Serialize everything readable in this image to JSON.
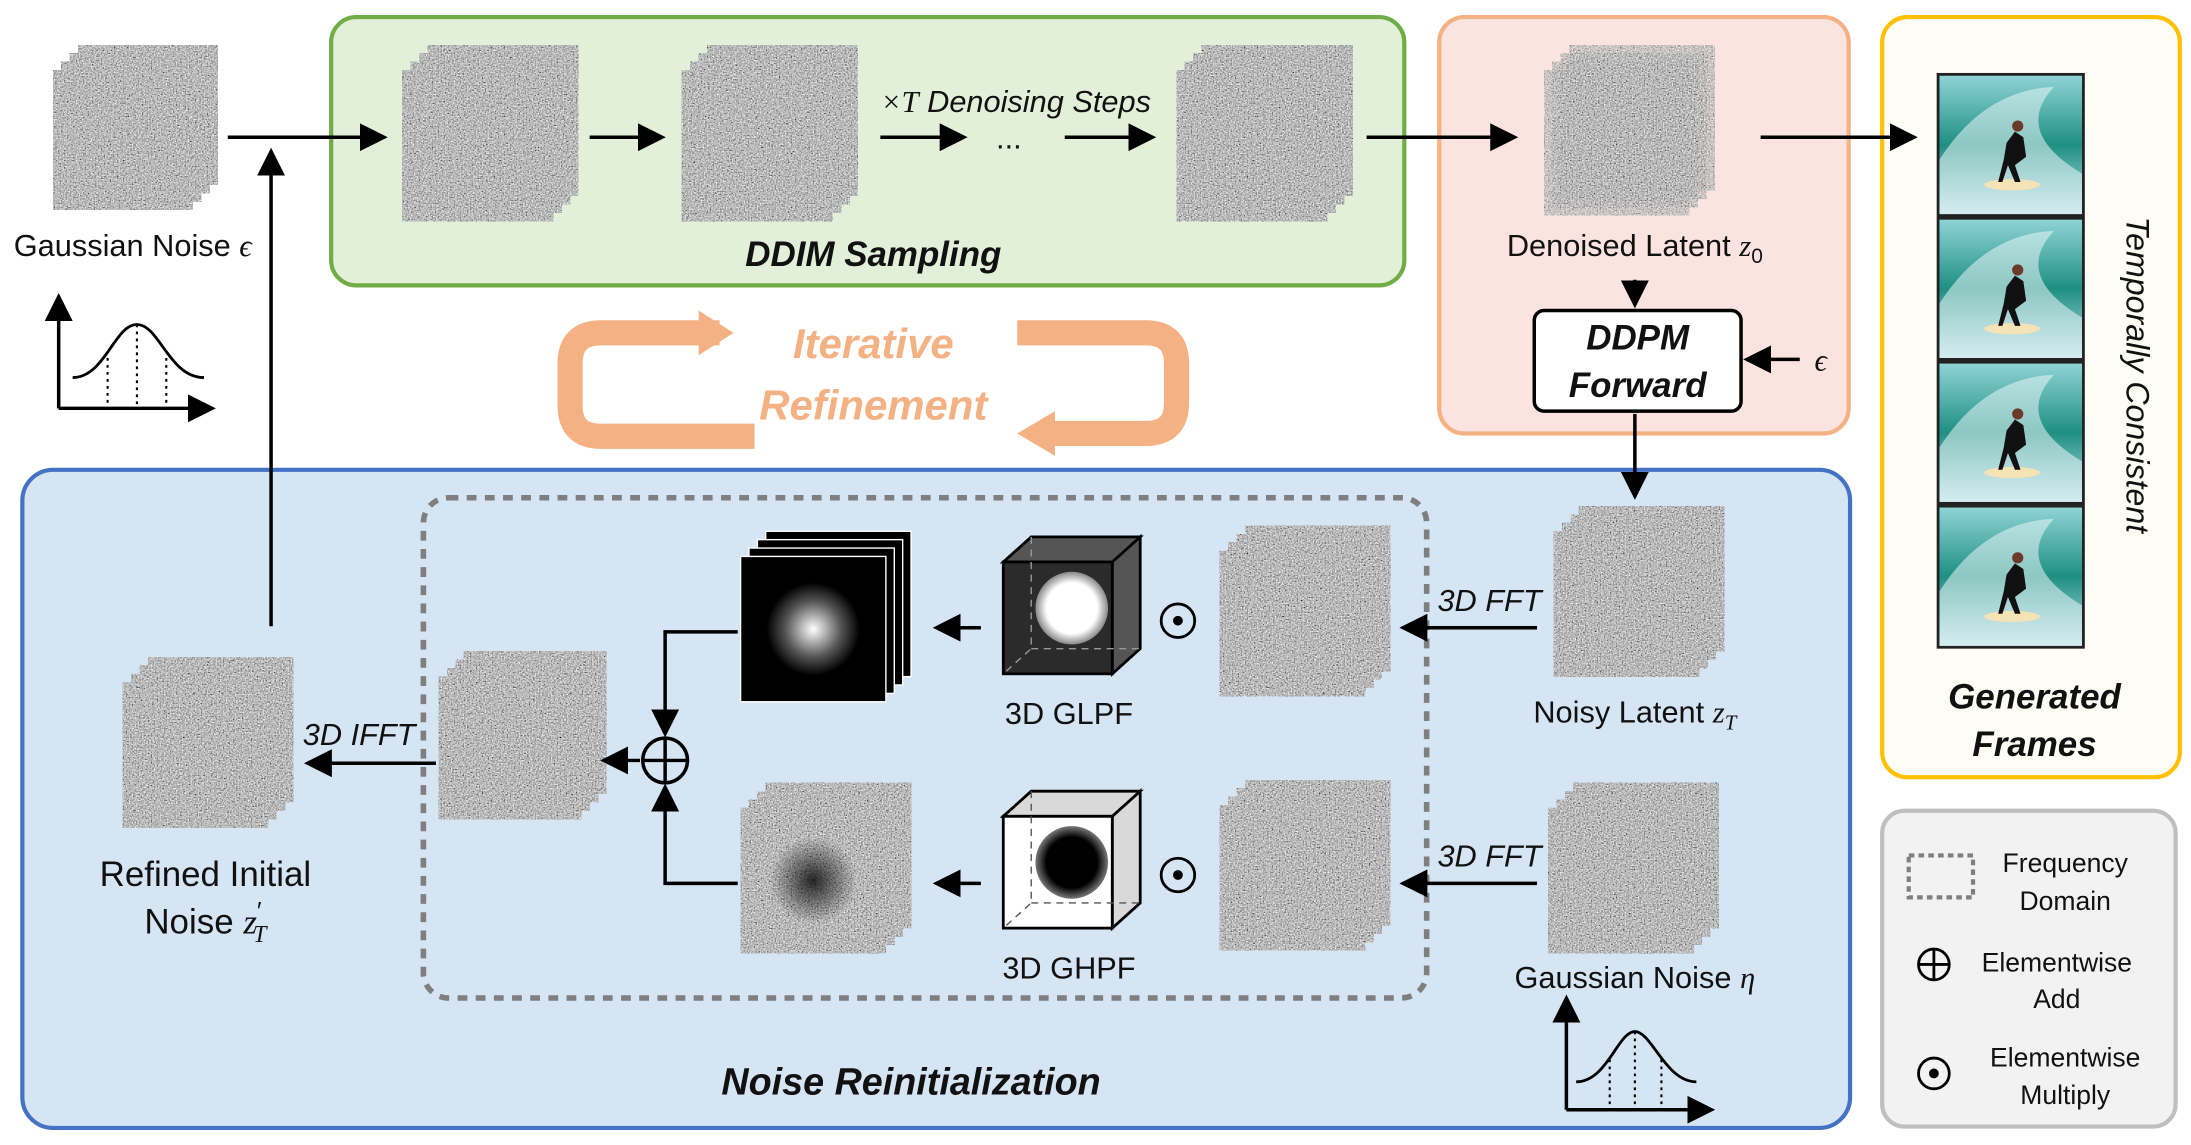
{
  "gaussian_noise": {
    "text": "Gaussian Noise",
    "math": "ϵ"
  },
  "ddim": {
    "title": "DDIM Sampling",
    "steps": "×T",
    "steps_label": "Denoising Steps",
    "ellipsis": "..."
  },
  "denoised": {
    "text": "Denoised Latent",
    "math": "z",
    "sub": "0"
  },
  "ddpm": {
    "line1": "DDPM",
    "line2": "Forward",
    "input": "ϵ"
  },
  "iterative": {
    "line1": "Iterative",
    "line2": "Refinement"
  },
  "generated": {
    "side": "Temporally Consistent",
    "line1": "Generated",
    "line2": "Frames"
  },
  "reinit": {
    "title": "Noise Reinitialization",
    "fft_top": "3D FFT",
    "fft_bottom": "3D FFT",
    "ifft": "3D IFFT",
    "glpf": "3D GLPF",
    "ghpf": "3D GHPF"
  },
  "noisy": {
    "text": "Noisy Latent",
    "math": "z",
    "sub": "T"
  },
  "eta": {
    "text": "Gaussian Noise",
    "math": "η"
  },
  "refined": {
    "line1": "Refined Initial",
    "line2": "Noise",
    "math": "z",
    "sup": "′",
    "sub": "T"
  },
  "legend": [
    {
      "line1": "Frequency",
      "line2": "Domain"
    },
    {
      "line1": "Elementwise",
      "line2": "Add"
    },
    {
      "line1": "Elementwise",
      "line2": "Multiply"
    }
  ]
}
